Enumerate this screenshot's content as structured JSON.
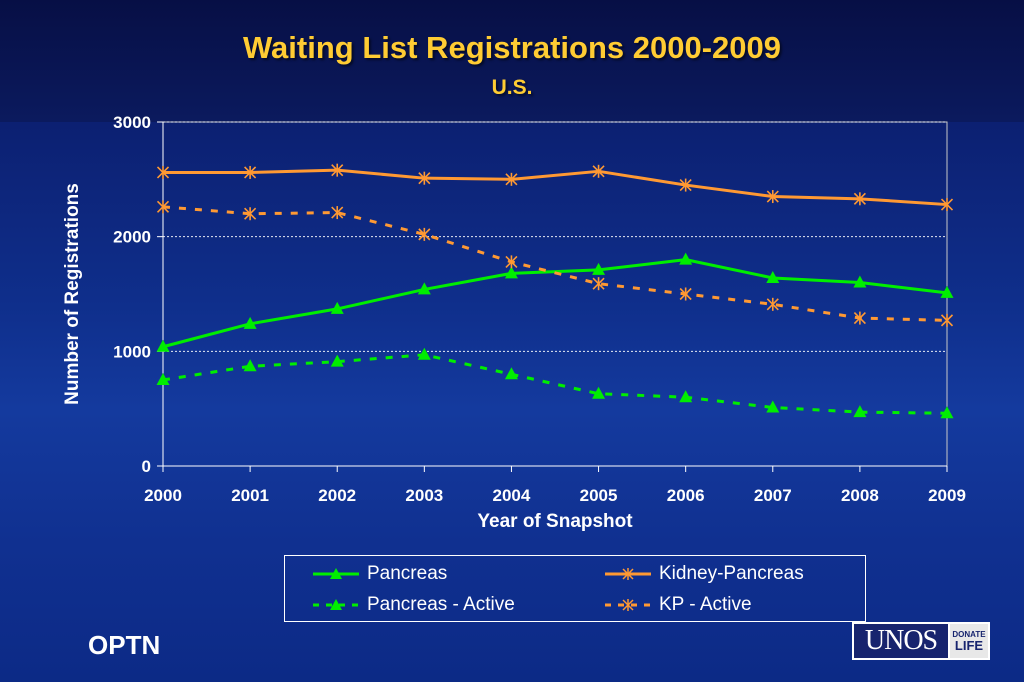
{
  "header": {
    "title": "Waiting List Registrations 2000-2009",
    "subtitle": "U.S."
  },
  "footer": {
    "org": "OPTN",
    "logo_text": "UNOS",
    "logo_badge_line1": "DONATE",
    "logo_badge_line2": "LIFE"
  },
  "colors": {
    "pancreas": "#00ee00",
    "kidney_pancreas": "#ff9933",
    "title": "#ffcc33",
    "axis_text": "#ffffff"
  },
  "chart_data": {
    "type": "line",
    "xlabel": "Year of Snapshot",
    "ylabel": "Number of Registrations",
    "ylim": [
      0,
      3000
    ],
    "yticks": [
      0,
      1000,
      2000,
      3000
    ],
    "grid": "horizontal dotted",
    "legend_position": "bottom",
    "categories": [
      "2000",
      "2001",
      "2002",
      "2003",
      "2004",
      "2005",
      "2006",
      "2007",
      "2008",
      "2009"
    ],
    "series": [
      {
        "name": "Pancreas",
        "values": [
          1040,
          1240,
          1370,
          1540,
          1680,
          1710,
          1800,
          1640,
          1600,
          1510
        ],
        "color": "#00ee00",
        "line": "solid",
        "marker": "triangle"
      },
      {
        "name": "Pancreas - Active",
        "values": [
          750,
          870,
          910,
          970,
          800,
          630,
          600,
          510,
          470,
          460
        ],
        "color": "#00ee00",
        "line": "dashed",
        "marker": "triangle"
      },
      {
        "name": "Kidney-Pancreas",
        "values": [
          2560,
          2560,
          2580,
          2510,
          2500,
          2570,
          2450,
          2350,
          2330,
          2280
        ],
        "color": "#ff9933",
        "line": "solid",
        "marker": "star"
      },
      {
        "name": "KP - Active",
        "values": [
          2260,
          2200,
          2210,
          2020,
          1780,
          1590,
          1500,
          1410,
          1290,
          1270
        ],
        "color": "#ff9933",
        "line": "dashed",
        "marker": "star"
      }
    ]
  },
  "legend": [
    {
      "label": "Pancreas",
      "series": 0
    },
    {
      "label": "Kidney-Pancreas",
      "series": 2
    },
    {
      "label": "Pancreas - Active",
      "series": 1
    },
    {
      "label": "KP - Active",
      "series": 3
    }
  ]
}
